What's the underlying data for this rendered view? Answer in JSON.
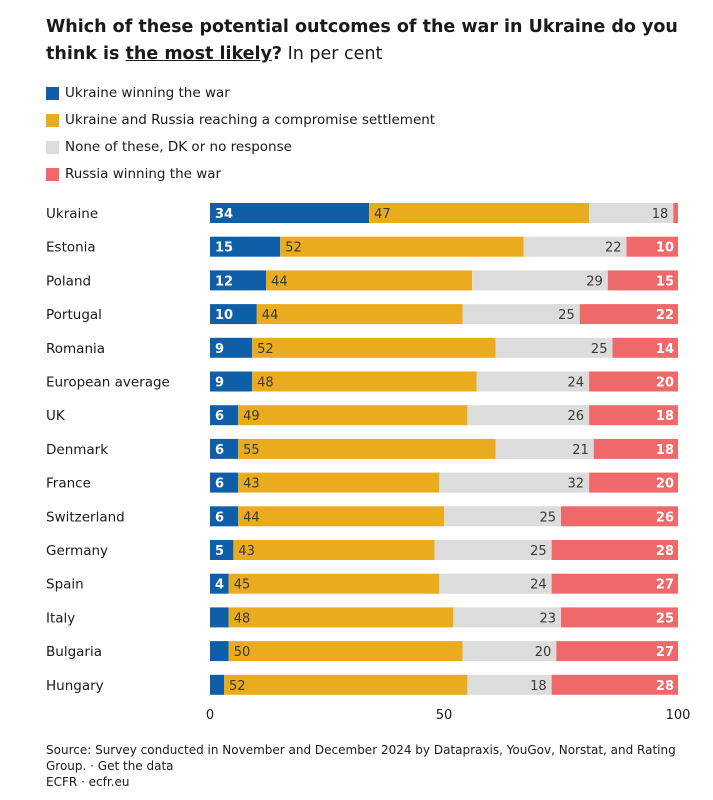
{
  "title": {
    "part1": "Which of these potential outcomes of the war in Ukraine do you think is ",
    "emphasis": "the most likely",
    "part2": "?",
    "subtitle": " In per cent"
  },
  "colors": {
    "ukraine_win": "#0f5fa8",
    "compromise": "#eaac1e",
    "none": "#dcdcdc",
    "russia_win": "#f0696a"
  },
  "chart_data": {
    "type": "bar",
    "orientation": "horizontal",
    "stacked": true,
    "xlim": [
      0,
      100
    ],
    "x_ticks": [
      "0",
      "50",
      "100"
    ],
    "legend_position": "top-left",
    "categories": [
      "Ukraine",
      "Estonia",
      "Poland",
      "Portugal",
      "Romania",
      "European average",
      "UK",
      "Denmark",
      "France",
      "Switzerland",
      "Germany",
      "Spain",
      "Italy",
      "Bulgaria",
      "Hungary"
    ],
    "series": [
      {
        "name": "Ukraine winning the war",
        "color": "#0f5fa8",
        "values": [
          34,
          15,
          12,
          10,
          9,
          9,
          6,
          6,
          6,
          6,
          5,
          4,
          4,
          4,
          3
        ],
        "labels": [
          "34",
          "15",
          "12",
          "10",
          "9",
          "9",
          "6",
          "6",
          "6",
          "6",
          "5",
          "4",
          "",
          "",
          ""
        ]
      },
      {
        "name": "Ukraine and Russia reaching a compromise settlement",
        "color": "#eaac1e",
        "values": [
          47,
          52,
          44,
          44,
          52,
          48,
          49,
          55,
          43,
          44,
          43,
          45,
          48,
          50,
          52
        ],
        "labels": [
          "47",
          "52",
          "44",
          "44",
          "52",
          "48",
          "49",
          "55",
          "43",
          "44",
          "43",
          "45",
          "48",
          "50",
          "52"
        ]
      },
      {
        "name": "None of these, DK or no response",
        "color": "#dcdcdc",
        "values": [
          18,
          22,
          29,
          25,
          25,
          24,
          26,
          21,
          32,
          25,
          25,
          24,
          23,
          20,
          18
        ],
        "labels": [
          "18",
          "22",
          "29",
          "25",
          "25",
          "24",
          "26",
          "21",
          "32",
          "25",
          "25",
          "24",
          "23",
          "20",
          "18"
        ]
      },
      {
        "name": "Russia winning the war",
        "color": "#f0696a",
        "values": [
          1,
          10,
          15,
          22,
          14,
          20,
          18,
          18,
          20,
          26,
          28,
          27,
          25,
          27,
          28
        ],
        "labels": [
          "",
          "10",
          "15",
          "22",
          "14",
          "20",
          "18",
          "18",
          "20",
          "26",
          "28",
          "27",
          "25",
          "27",
          "28"
        ]
      }
    ]
  },
  "source": {
    "line1": "Source: Survey conducted in November and December 2024 by Datapraxis, YouGov, Norstat, and Rating",
    "line2": "Group. · Get the data",
    "line3": "ECFR · ecfr.eu"
  }
}
